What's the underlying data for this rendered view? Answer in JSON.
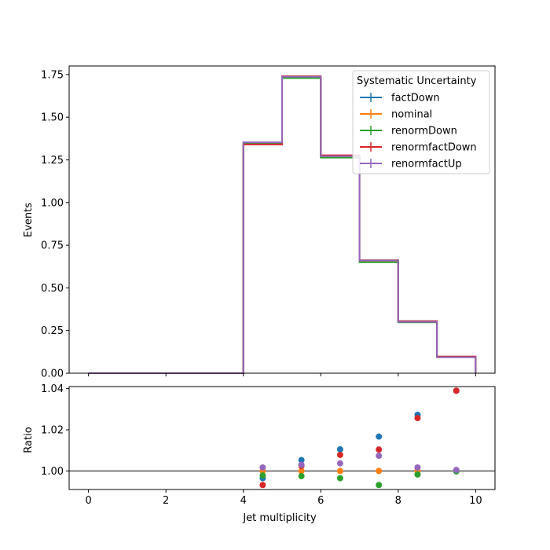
{
  "chart_data": [
    {
      "type": "line",
      "drawstyle": "step",
      "ylabel": "Events",
      "xlim": [
        -0.5,
        10.5
      ],
      "ylim": [
        0.0,
        1.8
      ],
      "bin_edges": [
        0,
        1,
        2,
        3,
        4,
        5,
        6,
        7,
        8,
        9,
        10
      ],
      "xticks": [
        "0",
        "2",
        "4",
        "6",
        "8",
        "10"
      ],
      "yticks": [
        "0.00",
        "0.25",
        "0.50",
        "0.75",
        "1.00",
        "1.25",
        "1.50",
        "1.75"
      ],
      "legend_title": "Systematic Uncertainty",
      "legend_position": "top-right",
      "series": [
        {
          "name": "factDown",
          "color": "#1f77b4",
          "values": [
            0,
            0,
            0,
            0,
            1.345,
            1.736,
            1.272,
            0.661,
            0.305,
            0.097
          ]
        },
        {
          "name": "nominal",
          "color": "#ff7f0e",
          "values": [
            0,
            0,
            0,
            0,
            1.349,
            1.733,
            1.267,
            0.655,
            0.3,
            0.094
          ]
        },
        {
          "name": "renormDown",
          "color": "#2ca02c",
          "values": [
            0,
            0,
            0,
            0,
            1.346,
            1.729,
            1.263,
            0.65,
            0.298,
            0.094
          ]
        },
        {
          "name": "renormfactDown",
          "color": "#d62728",
          "values": [
            0,
            0,
            0,
            0,
            1.34,
            1.74,
            1.277,
            0.662,
            0.305,
            0.098
          ]
        },
        {
          "name": "renormfactUp",
          "color": "#9467bd",
          "values": [
            0,
            0,
            0,
            0,
            1.353,
            1.737,
            1.272,
            0.66,
            0.301,
            0.094
          ]
        }
      ]
    },
    {
      "type": "scatter",
      "xlabel": "Jet multiplicity",
      "ylabel": "Ratio",
      "xlim": [
        -0.5,
        10.5
      ],
      "ylim": [
        0.991,
        1.041
      ],
      "reference_line": 1.0,
      "xticks": [
        "0",
        "2",
        "4",
        "6",
        "8",
        "10"
      ],
      "yticks": [
        "1.00",
        "1.02",
        "1.04"
      ],
      "x": [
        4.5,
        5.5,
        6.5,
        7.5,
        8.5,
        9.5
      ],
      "series": [
        {
          "name": "factDown",
          "color": "#1f77b4",
          "values": [
            0.9965,
            1.0053,
            1.0105,
            1.0167,
            1.0273,
            1.039
          ]
        },
        {
          "name": "nominal",
          "color": "#ff7f0e",
          "values": [
            1.0,
            1.0,
            1.0,
            1.0,
            1.0,
            1.0
          ]
        },
        {
          "name": "renormDown",
          "color": "#2ca02c",
          "values": [
            0.9978,
            0.9975,
            0.9965,
            0.9932,
            0.9983,
            0.9998
          ]
        },
        {
          "name": "renormfactDown",
          "color": "#d62728",
          "values": [
            0.9932,
            1.0025,
            1.0078,
            1.0104,
            1.0257,
            1.039
          ]
        },
        {
          "name": "renormfactUp",
          "color": "#9467bd",
          "values": [
            1.0017,
            1.003,
            1.0037,
            1.0074,
            1.0017,
            1.0005
          ]
        }
      ]
    }
  ]
}
